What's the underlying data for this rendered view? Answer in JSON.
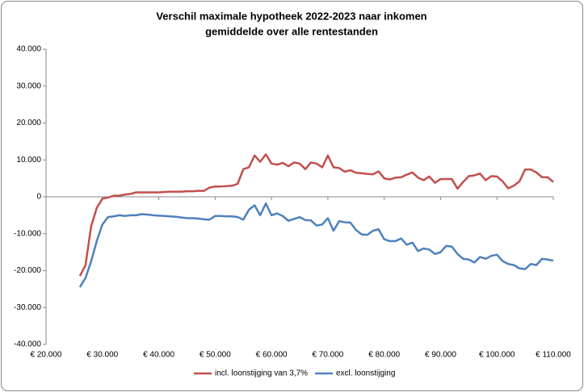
{
  "chart_data": {
    "type": "line",
    "title": "Verschil maximale hypotheek 2022-2023 naar inkomen",
    "subtitle": "gemiddelde over alle rentestanden",
    "x": [
      26000,
      27000,
      28000,
      29000,
      30000,
      31000,
      32000,
      33000,
      34000,
      35000,
      36000,
      37000,
      38000,
      39000,
      40000,
      41000,
      42000,
      43000,
      44000,
      45000,
      46000,
      47000,
      48000,
      49000,
      50000,
      51000,
      52000,
      53000,
      54000,
      55000,
      56000,
      57000,
      58000,
      59000,
      60000,
      61000,
      62000,
      63000,
      64000,
      65000,
      66000,
      67000,
      68000,
      69000,
      70000,
      71000,
      72000,
      73000,
      74000,
      75000,
      76000,
      77000,
      78000,
      79000,
      80000,
      81000,
      82000,
      83000,
      84000,
      85000,
      86000,
      87000,
      88000,
      89000,
      90000,
      91000,
      92000,
      93000,
      94000,
      95000,
      96000,
      97000,
      98000,
      99000,
      100000,
      101000,
      102000,
      103000,
      104000,
      105000,
      106000,
      107000,
      108000,
      109000,
      110000
    ],
    "series": [
      {
        "name": "incl. loonstijging van 3,7%",
        "color": "#c0504d",
        "values": [
          -21500,
          -18500,
          -8000,
          -3000,
          -500,
          -200,
          300,
          300,
          600,
          800,
          1200,
          1200,
          1200,
          1200,
          1200,
          1300,
          1400,
          1400,
          1400,
          1500,
          1500,
          1600,
          1600,
          2500,
          2800,
          2800,
          2900,
          3000,
          3500,
          7500,
          8000,
          11200,
          9500,
          11500,
          9000,
          8700,
          9200,
          8300,
          9300,
          9000,
          7500,
          9300,
          9000,
          8000,
          11200,
          8000,
          7800,
          6800,
          7200,
          6500,
          6400,
          6200,
          6100,
          6900,
          5000,
          4700,
          5200,
          5300,
          6000,
          6600,
          5200,
          4500,
          5500,
          3800,
          4800,
          4800,
          4800,
          2200,
          4000,
          5600,
          5800,
          6300,
          4500,
          5600,
          5500,
          4200,
          2300,
          3000,
          4200,
          7400,
          7400,
          6600,
          5300,
          5300,
          4000
        ]
      },
      {
        "name": "excl. loonstijging",
        "color": "#4f81bd",
        "values": [
          -24500,
          -22000,
          -17500,
          -12000,
          -7500,
          -5500,
          -5300,
          -5000,
          -5200,
          -5000,
          -5000,
          -4700,
          -4800,
          -5000,
          -5100,
          -5200,
          -5300,
          -5400,
          -5600,
          -5800,
          -5800,
          -5900,
          -6100,
          -6200,
          -5200,
          -5200,
          -5300,
          -5300,
          -5500,
          -6200,
          -3500,
          -2300,
          -5000,
          -1800,
          -5000,
          -4500,
          -5200,
          -6500,
          -6000,
          -5500,
          -6300,
          -6400,
          -7800,
          -7500,
          -5800,
          -9200,
          -6600,
          -6900,
          -7000,
          -9000,
          -10200,
          -10300,
          -9200,
          -8800,
          -11500,
          -12000,
          -12000,
          -11300,
          -13000,
          -12400,
          -14700,
          -14000,
          -14300,
          -15500,
          -15000,
          -13300,
          -13500,
          -15500,
          -16800,
          -17000,
          -17800,
          -16300,
          -16800,
          -16000,
          -15700,
          -17400,
          -18200,
          -18500,
          -19400,
          -19600,
          -18200,
          -18500,
          -16800,
          -17000,
          -17300
        ]
      }
    ],
    "xlim": [
      20000,
      110000
    ],
    "xticks": [
      {
        "value": 20000,
        "label": "€ 20.000"
      },
      {
        "value": 30000,
        "label": "€ 30.000"
      },
      {
        "value": 40000,
        "label": "€ 40.000"
      },
      {
        "value": 50000,
        "label": "€ 50.000"
      },
      {
        "value": 60000,
        "label": "€ 60.000"
      },
      {
        "value": 70000,
        "label": "€ 70.000"
      },
      {
        "value": 80000,
        "label": "€ 80.000"
      },
      {
        "value": 90000,
        "label": "€ 90.000"
      },
      {
        "value": 100000,
        "label": "€ 100.000"
      },
      {
        "value": 110000,
        "label": "€ 110.000"
      }
    ],
    "ylim": [
      -40000,
      40000
    ],
    "yticks": [
      {
        "value": -40000,
        "label": "-40.000"
      },
      {
        "value": -30000,
        "label": "-30.000"
      },
      {
        "value": -20000,
        "label": "-20.000"
      },
      {
        "value": -10000,
        "label": "-10.000"
      },
      0,
      {
        "value": 10000,
        "label": "10.000"
      },
      {
        "value": 20000,
        "label": "20.000"
      },
      {
        "value": 30000,
        "label": "30.000"
      },
      {
        "value": 40000,
        "label": "40.000"
      }
    ],
    "legend": "bottom"
  }
}
